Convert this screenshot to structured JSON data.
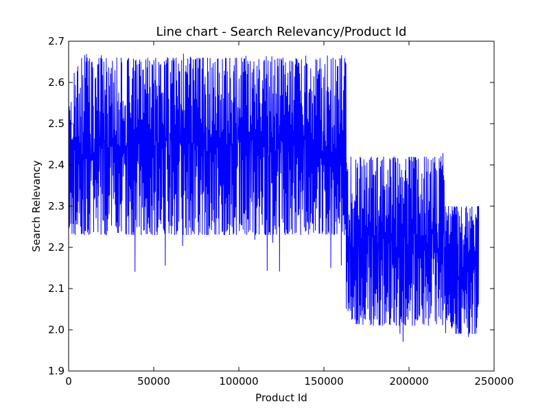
{
  "chart_data": {
    "type": "line",
    "title": "Line chart - Search Relevancy/Product Id",
    "xlabel": "Product Id",
    "ylabel": "Search Relevancy",
    "xlim": [
      0,
      250000
    ],
    "ylim": [
      1.9,
      2.7
    ],
    "x_ticks": [
      0,
      50000,
      100000,
      150000,
      200000,
      250000
    ],
    "x_tick_labels": [
      "0",
      "50000",
      "100000",
      "150000",
      "200000",
      "250000"
    ],
    "y_ticks": [
      1.9,
      2.0,
      2.1,
      2.2,
      2.3,
      2.4,
      2.5,
      2.6,
      2.7
    ],
    "y_tick_labels": [
      "1.9",
      "2.0",
      "2.1",
      "2.2",
      "2.3",
      "2.4",
      "2.5",
      "2.6",
      "2.7"
    ],
    "grid": false,
    "legend": "none",
    "line_color": "#0000ff",
    "x_range": [
      0,
      241000
    ],
    "segments": [
      {
        "x_start": 0,
        "x_end": 163000,
        "upper_envelope": 2.66,
        "lower_envelope": 2.23,
        "max_spike": 2.67,
        "min_spike": 2.14
      },
      {
        "x_start": 164000,
        "x_end": 221000,
        "upper_envelope": 2.42,
        "lower_envelope": 2.01,
        "max_spike": 2.45,
        "min_spike": 1.94
      },
      {
        "x_start": 222000,
        "x_end": 241000,
        "upper_envelope": 2.3,
        "lower_envelope": 1.99,
        "max_spike": 2.33,
        "min_spike": 1.97
      }
    ]
  }
}
